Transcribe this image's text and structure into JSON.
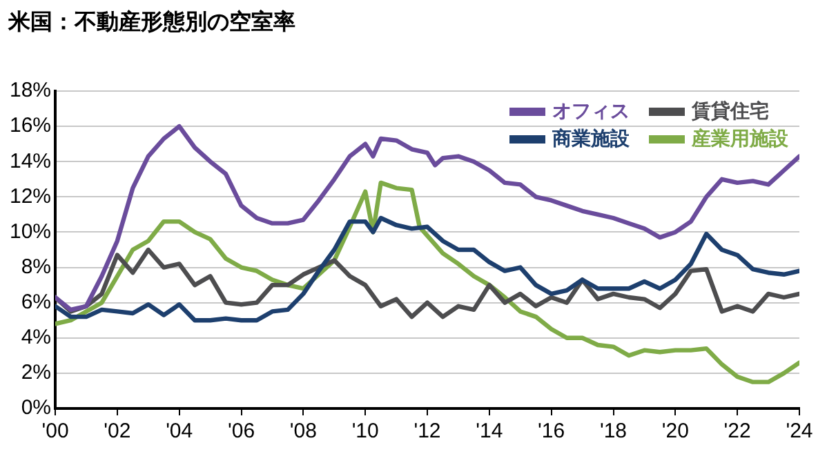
{
  "chart_data": {
    "type": "line",
    "title": "米国：不動産形態別の空室率",
    "legend": "top right",
    "grid": "y",
    "marker": "none",
    "line_style": "solid",
    "xlim": [
      2000,
      2024
    ],
    "xticks": [
      {
        "value": 2000,
        "label": "'00"
      },
      {
        "value": 2002,
        "label": "'02"
      },
      {
        "value": 2004,
        "label": "'04"
      },
      {
        "value": 2006,
        "label": "'06"
      },
      {
        "value": 2008,
        "label": "'08"
      },
      {
        "value": 2010,
        "label": "'10"
      },
      {
        "value": 2012,
        "label": "'12"
      },
      {
        "value": 2014,
        "label": "'14"
      },
      {
        "value": 2016,
        "label": "'16"
      },
      {
        "value": 2018,
        "label": "'18"
      },
      {
        "value": 2020,
        "label": "'20"
      },
      {
        "value": 2022,
        "label": "'22"
      },
      {
        "value": 2024,
        "label": "'24"
      }
    ],
    "ylim": [
      0,
      18
    ],
    "yticks": [
      {
        "value": 0,
        "label": "0%"
      },
      {
        "value": 2,
        "label": "2%"
      },
      {
        "value": 4,
        "label": "4%"
      },
      {
        "value": 6,
        "label": "6%"
      },
      {
        "value": 8,
        "label": "8%"
      },
      {
        "value": 10,
        "label": "10%"
      },
      {
        "value": 12,
        "label": "12%"
      },
      {
        "value": 14,
        "label": "14%"
      },
      {
        "value": 16,
        "label": "16%"
      },
      {
        "value": 18,
        "label": "18%"
      }
    ],
    "series": [
      {
        "name": "オフィス",
        "color": "#6a4c9c",
        "x": [
          2000,
          2000.5,
          2001,
          2001.5,
          2002,
          2002.5,
          2003,
          2003.5,
          2004,
          2004.5,
          2005,
          2005.5,
          2006,
          2006.5,
          2007,
          2007.5,
          2008,
          2008.5,
          2009,
          2009.5,
          2010,
          2010.25,
          2010.5,
          2011,
          2011.5,
          2012,
          2012.25,
          2012.5,
          2013,
          2013.5,
          2014,
          2014.5,
          2015,
          2015.5,
          2016,
          2016.5,
          2017,
          2017.5,
          2018,
          2018.5,
          2019,
          2019.5,
          2020,
          2020.5,
          2021,
          2021.5,
          2022,
          2022.5,
          2023,
          2023.5,
          2024
        ],
        "values": [
          6.3,
          5.6,
          5.8,
          7.5,
          9.5,
          12.5,
          14.3,
          15.3,
          16.0,
          14.8,
          14.0,
          13.3,
          11.5,
          10.8,
          10.5,
          10.5,
          10.7,
          11.8,
          13.0,
          14.3,
          15.0,
          14.3,
          15.3,
          15.2,
          14.7,
          14.5,
          13.8,
          14.2,
          14.3,
          14.0,
          13.5,
          12.8,
          12.7,
          12.0,
          11.8,
          11.5,
          11.2,
          11.0,
          10.8,
          10.5,
          10.2,
          9.7,
          10.0,
          10.6,
          12.0,
          13.0,
          12.8,
          12.9,
          12.7,
          13.5,
          14.3
        ]
      },
      {
        "name": "商業施設",
        "color": "#1d3f6e",
        "x": [
          2000,
          2000.5,
          2001,
          2001.5,
          2002,
          2002.5,
          2003,
          2003.5,
          2004,
          2004.5,
          2005,
          2005.5,
          2006,
          2006.5,
          2007,
          2007.5,
          2008,
          2008.5,
          2009,
          2009.5,
          2010,
          2010.25,
          2010.5,
          2011,
          2011.5,
          2012,
          2012.5,
          2013,
          2013.5,
          2014,
          2014.5,
          2015,
          2015.5,
          2016,
          2016.5,
          2017,
          2017.5,
          2018,
          2018.5,
          2019,
          2019.5,
          2020,
          2020.5,
          2021,
          2021.5,
          2022,
          2022.5,
          2023,
          2023.5,
          2024
        ],
        "values": [
          5.8,
          5.2,
          5.2,
          5.6,
          5.5,
          5.4,
          5.9,
          5.3,
          5.9,
          5.0,
          5.0,
          5.1,
          5.0,
          5.0,
          5.5,
          5.6,
          6.5,
          7.8,
          9.0,
          10.6,
          10.6,
          10.0,
          10.8,
          10.4,
          10.2,
          10.3,
          9.5,
          9.0,
          9.0,
          8.3,
          7.8,
          8.0,
          7.0,
          6.5,
          6.7,
          7.3,
          6.8,
          6.8,
          6.8,
          7.2,
          6.8,
          7.3,
          8.2,
          9.9,
          9.0,
          8.7,
          7.9,
          7.7,
          7.6,
          7.8
        ]
      },
      {
        "name": "賃貸住宅",
        "color": "#4d4d4f",
        "x": [
          2000,
          2000.5,
          2001,
          2001.5,
          2002,
          2002.5,
          2003,
          2003.5,
          2004,
          2004.5,
          2005,
          2005.5,
          2006,
          2006.5,
          2007,
          2007.5,
          2008,
          2008.5,
          2009,
          2009.5,
          2010,
          2010.5,
          2011,
          2011.5,
          2012,
          2012.5,
          2013,
          2013.5,
          2014,
          2014.5,
          2015,
          2015.5,
          2016,
          2016.5,
          2017,
          2017.5,
          2018,
          2018.5,
          2019,
          2019.5,
          2020,
          2020.5,
          2021,
          2021.5,
          2022,
          2022.5,
          2023,
          2023.5,
          2024
        ],
        "values": [
          6.3,
          5.5,
          5.8,
          6.5,
          8.7,
          7.7,
          9.0,
          8.0,
          8.2,
          7.0,
          7.5,
          6.0,
          5.9,
          6.0,
          7.0,
          7.0,
          7.6,
          8.0,
          8.4,
          7.5,
          7.0,
          5.8,
          6.2,
          5.2,
          6.0,
          5.2,
          5.8,
          5.6,
          7.0,
          6.0,
          6.5,
          5.8,
          6.3,
          6.0,
          7.3,
          6.2,
          6.5,
          6.3,
          6.2,
          5.7,
          6.5,
          7.8,
          7.9,
          5.5,
          5.8,
          5.5,
          6.5,
          6.3,
          6.5
        ]
      },
      {
        "name": "産業用施設",
        "color": "#7fab47",
        "x": [
          2000,
          2000.5,
          2001,
          2001.5,
          2002,
          2002.5,
          2003,
          2003.5,
          2004,
          2004.5,
          2005,
          2005.5,
          2006,
          2006.5,
          2007,
          2007.5,
          2008,
          2008.5,
          2009,
          2009.5,
          2010,
          2010.25,
          2010.5,
          2011,
          2011.5,
          2011.75,
          2012,
          2012.5,
          2013,
          2013.5,
          2014,
          2014.5,
          2015,
          2015.5,
          2016,
          2016.5,
          2017,
          2017.5,
          2018,
          2018.5,
          2019,
          2019.5,
          2020,
          2020.5,
          2021,
          2021.5,
          2022,
          2022.5,
          2023,
          2023.5,
          2024
        ],
        "values": [
          4.8,
          5.0,
          5.5,
          6.0,
          7.5,
          9.0,
          9.5,
          10.6,
          10.6,
          10.0,
          9.6,
          8.5,
          8.0,
          7.8,
          7.3,
          7.0,
          6.8,
          7.6,
          8.4,
          10.3,
          12.3,
          10.0,
          12.8,
          12.5,
          12.4,
          10.3,
          9.8,
          8.8,
          8.2,
          7.5,
          7.0,
          6.3,
          5.5,
          5.2,
          4.5,
          4.0,
          4.0,
          3.6,
          3.5,
          3.0,
          3.3,
          3.2,
          3.3,
          3.3,
          3.4,
          2.5,
          1.8,
          1.5,
          1.5,
          2.0,
          2.6
        ]
      }
    ]
  }
}
